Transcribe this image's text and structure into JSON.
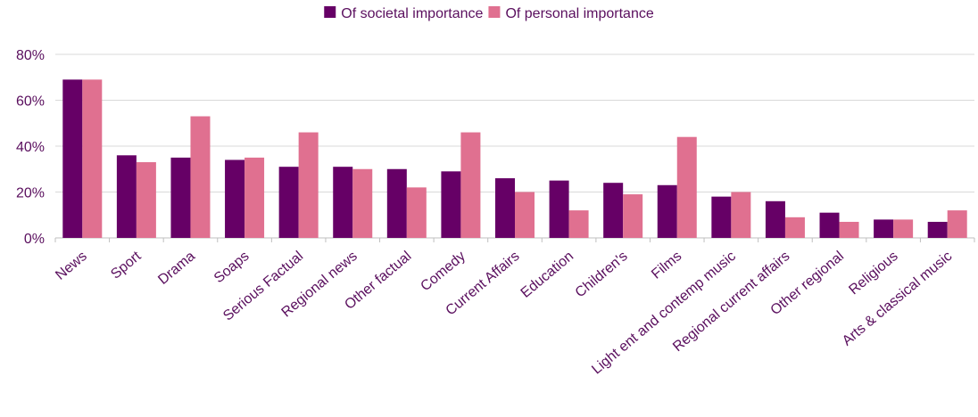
{
  "chart_data": {
    "type": "bar",
    "categories": [
      "News",
      "Sport",
      "Drama",
      "Soaps",
      "Serious Factual",
      "Regional news",
      "Other factual",
      "Comedy",
      "Current Affairs",
      "Education",
      "Children's",
      "Films",
      "Light ent and contemp music",
      "Regional current affairs",
      "Other regional",
      "Religious",
      "Arts & classical music"
    ],
    "series": [
      {
        "name": "Of societal importance",
        "values": [
          69,
          36,
          35,
          34,
          31,
          31,
          30,
          29,
          26,
          25,
          24,
          23,
          18,
          16,
          11,
          8,
          7
        ]
      },
      {
        "name": "Of personal importance",
        "values": [
          69,
          33,
          53,
          35,
          46,
          30,
          22,
          46,
          20,
          12,
          19,
          44,
          20,
          9,
          7,
          8,
          12
        ]
      }
    ],
    "colors": [
      "#660066",
      "#e07090"
    ],
    "title": "",
    "xlabel": "",
    "ylabel": "",
    "ylim": [
      0,
      80
    ],
    "yticks": [
      "0%",
      "20%",
      "40%",
      "60%",
      "80%"
    ],
    "grid": true,
    "legend_position": "top-center"
  }
}
